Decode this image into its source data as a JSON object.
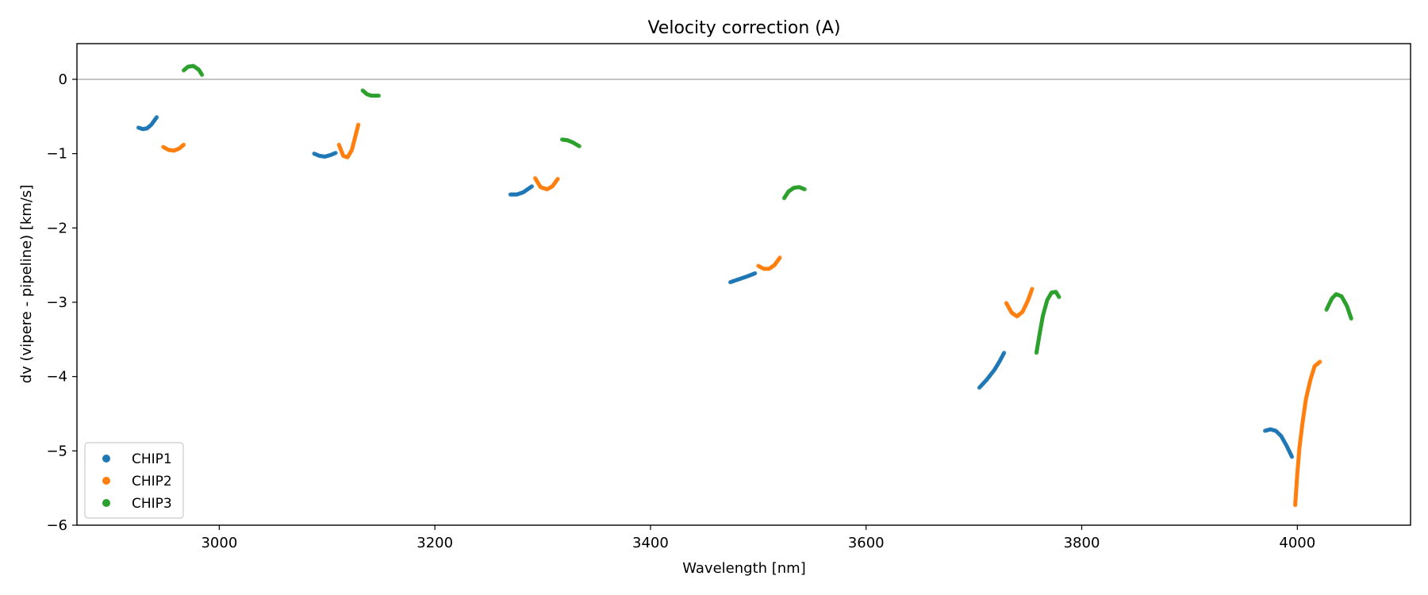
{
  "chart_data": {
    "type": "scatter",
    "title": "Velocity correction (A)",
    "xlabel": "Wavelength [nm]",
    "ylabel": "dv (vipere - pipeline) [km/s]",
    "xlim": [
      2868,
      4105
    ],
    "ylim": [
      -6,
      0.48
    ],
    "xticks": [
      3000,
      3200,
      3400,
      3600,
      3800,
      4000
    ],
    "yticks": [
      0,
      -1,
      -2,
      -3,
      -4,
      -5,
      -6
    ],
    "xtick_labels": [
      "3000",
      "3200",
      "3400",
      "3600",
      "3800",
      "4000"
    ],
    "ytick_labels": [
      "0",
      "−1",
      "−2",
      "−3",
      "−4",
      "−5",
      "−6"
    ],
    "reference_line": {
      "y": 0,
      "color": "#888888"
    },
    "legend": {
      "position": "lower-left",
      "entries": [
        "CHIP1",
        "CHIP2",
        "CHIP3"
      ]
    },
    "series": [
      {
        "name": "CHIP1",
        "color": "#1f77b4",
        "segments": [
          [
            [
              2925,
              -0.65
            ],
            [
              2929,
              -0.67
            ],
            [
              2933,
              -0.66
            ],
            [
              2937,
              -0.61
            ],
            [
              2942,
              -0.51
            ]
          ],
          [
            [
              3088,
              -1.0
            ],
            [
              3093,
              -1.03
            ],
            [
              3098,
              -1.04
            ],
            [
              3103,
              -1.02
            ],
            [
              3108,
              -0.99
            ]
          ],
          [
            [
              3270,
              -1.55
            ],
            [
              3276,
              -1.55
            ],
            [
              3282,
              -1.52
            ],
            [
              3290,
              -1.44
            ]
          ],
          [
            [
              3474,
              -2.73
            ],
            [
              3482,
              -2.69
            ],
            [
              3490,
              -2.65
            ],
            [
              3497,
              -2.61
            ]
          ],
          [
            [
              3705,
              -4.15
            ],
            [
              3712,
              -4.04
            ],
            [
              3719,
              -3.91
            ],
            [
              3724,
              -3.79
            ],
            [
              3728,
              -3.68
            ]
          ],
          [
            [
              3970,
              -4.73
            ],
            [
              3975,
              -4.71
            ],
            [
              3980,
              -4.73
            ],
            [
              3985,
              -4.8
            ],
            [
              3990,
              -4.93
            ],
            [
              3995,
              -5.08
            ]
          ]
        ]
      },
      {
        "name": "CHIP2",
        "color": "#ff7f0e",
        "segments": [
          [
            [
              2948,
              -0.91
            ],
            [
              2953,
              -0.95
            ],
            [
              2958,
              -0.96
            ],
            [
              2963,
              -0.93
            ],
            [
              2967,
              -0.88
            ]
          ],
          [
            [
              3111,
              -0.88
            ],
            [
              3115,
              -1.03
            ],
            [
              3119,
              -1.05
            ],
            [
              3123,
              -0.95
            ],
            [
              3126,
              -0.78
            ],
            [
              3129,
              -0.61
            ]
          ],
          [
            [
              3293,
              -1.33
            ],
            [
              3298,
              -1.45
            ],
            [
              3304,
              -1.48
            ],
            [
              3309,
              -1.44
            ],
            [
              3314,
              -1.34
            ]
          ],
          [
            [
              3500,
              -2.51
            ],
            [
              3505,
              -2.55
            ],
            [
              3510,
              -2.55
            ],
            [
              3515,
              -2.5
            ],
            [
              3520,
              -2.4
            ]
          ],
          [
            [
              3730,
              -3.01
            ],
            [
              3735,
              -3.14
            ],
            [
              3740,
              -3.19
            ],
            [
              3745,
              -3.13
            ],
            [
              3750,
              -2.98
            ],
            [
              3754,
              -2.82
            ]
          ],
          [
            [
              3998,
              -5.73
            ],
            [
              4000,
              -5.3
            ],
            [
              4002,
              -4.95
            ],
            [
              4005,
              -4.6
            ],
            [
              4008,
              -4.3
            ],
            [
              4012,
              -4.05
            ],
            [
              4016,
              -3.86
            ],
            [
              4021,
              -3.8
            ]
          ]
        ]
      },
      {
        "name": "CHIP3",
        "color": "#2ca02c",
        "segments": [
          [
            [
              2967,
              0.12
            ],
            [
              2971,
              0.17
            ],
            [
              2976,
              0.18
            ],
            [
              2981,
              0.13
            ],
            [
              2984,
              0.06
            ]
          ],
          [
            [
              3133,
              -0.15
            ],
            [
              3137,
              -0.2
            ],
            [
              3141,
              -0.22
            ],
            [
              3145,
              -0.22
            ],
            [
              3148,
              -0.22
            ]
          ],
          [
            [
              3318,
              -0.81
            ],
            [
              3323,
              -0.82
            ],
            [
              3328,
              -0.85
            ],
            [
              3334,
              -0.9
            ]
          ],
          [
            [
              3524,
              -1.6
            ],
            [
              3528,
              -1.51
            ],
            [
              3533,
              -1.46
            ],
            [
              3538,
              -1.45
            ],
            [
              3543,
              -1.48
            ]
          ],
          [
            [
              3758,
              -3.68
            ],
            [
              3761,
              -3.42
            ],
            [
              3764,
              -3.18
            ],
            [
              3768,
              -2.97
            ],
            [
              3772,
              -2.87
            ],
            [
              3776,
              -2.86
            ],
            [
              3779,
              -2.93
            ]
          ],
          [
            [
              4027,
              -3.1
            ],
            [
              4032,
              -2.95
            ],
            [
              4036,
              -2.89
            ],
            [
              4041,
              -2.92
            ],
            [
              4046,
              -3.05
            ],
            [
              4050,
              -3.22
            ]
          ]
        ]
      }
    ]
  }
}
